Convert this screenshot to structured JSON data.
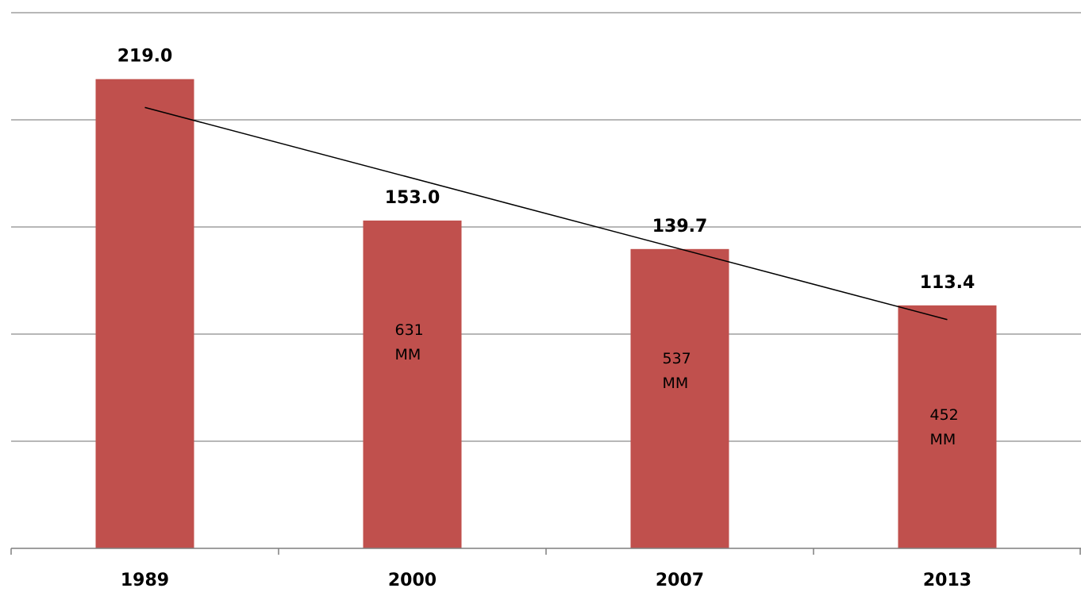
{
  "chart_data": {
    "type": "bar",
    "categories": [
      "1989",
      "2000",
      "2007",
      "2013"
    ],
    "values": [
      219.0,
      153.0,
      139.7,
      113.4
    ],
    "value_labels": [
      "219.0",
      "153.0",
      "139.7",
      "113.4"
    ],
    "annotations": [
      null,
      {
        "line1": "631",
        "line2": "MM"
      },
      {
        "line1": "537",
        "line2": "MM"
      },
      {
        "line1": "452",
        "line2": "MM"
      }
    ],
    "title": "",
    "xlabel": "",
    "ylabel": "",
    "ylim": [
      0,
      250
    ],
    "y_gridline_step": 50,
    "y_tick_labels_shown": false,
    "grid": true,
    "legend": "none",
    "trendline": {
      "type": "linear",
      "shown": true
    },
    "colors": {
      "bar": "#c0504d",
      "gridline": "#8c8c8c",
      "axis": "#7f7f7f",
      "trendline": "#000000",
      "text": "#000000"
    }
  }
}
